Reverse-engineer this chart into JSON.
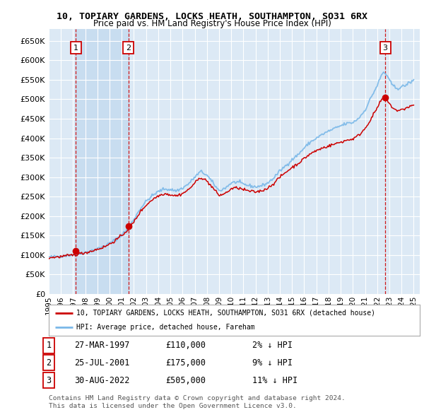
{
  "title": "10, TOPIARY GARDENS, LOCKS HEATH, SOUTHAMPTON, SO31 6RX",
  "subtitle": "Price paid vs. HM Land Registry's House Price Index (HPI)",
  "ylim": [
    0,
    680000
  ],
  "yticks": [
    0,
    50000,
    100000,
    150000,
    200000,
    250000,
    300000,
    350000,
    400000,
    450000,
    500000,
    550000,
    600000,
    650000
  ],
  "bg_color": "#dce9f5",
  "grid_color": "#ffffff",
  "hpi_color": "#7ab8e8",
  "price_color": "#cc0000",
  "sale_color": "#cc0000",
  "dashed_color": "#cc0000",
  "shade_color": "#c8ddf0",
  "legend_label_price": "10, TOPIARY GARDENS, LOCKS HEATH, SOUTHAMPTON, SO31 6RX (detached house)",
  "legend_label_hpi": "HPI: Average price, detached house, Fareham",
  "transactions": [
    {
      "id": 1,
      "date": "27-MAR-1997",
      "year": 1997.23,
      "price": 110000,
      "note": "2% ↓ HPI"
    },
    {
      "id": 2,
      "date": "25-JUL-2001",
      "year": 2001.56,
      "price": 175000,
      "note": "9% ↓ HPI"
    },
    {
      "id": 3,
      "date": "30-AUG-2022",
      "year": 2022.66,
      "price": 505000,
      "note": "11% ↓ HPI"
    }
  ],
  "footnote1": "Contains HM Land Registry data © Crown copyright and database right 2024.",
  "footnote2": "This data is licensed under the Open Government Licence v3.0.",
  "xmin": 1995.0,
  "xmax": 2025.5,
  "xticks": [
    1995,
    1996,
    1997,
    1998,
    1999,
    2000,
    2001,
    2002,
    2003,
    2004,
    2005,
    2006,
    2007,
    2008,
    2009,
    2010,
    2011,
    2012,
    2013,
    2014,
    2015,
    2016,
    2017,
    2018,
    2019,
    2020,
    2021,
    2022,
    2023,
    2024,
    2025
  ],
  "hpi_anchors": [
    [
      1995.0,
      95000
    ],
    [
      1995.5,
      96000
    ],
    [
      1996.0,
      97500
    ],
    [
      1996.5,
      99000
    ],
    [
      1997.0,
      101000
    ],
    [
      1997.5,
      104000
    ],
    [
      1998.0,
      107000
    ],
    [
      1998.5,
      111000
    ],
    [
      1999.0,
      116000
    ],
    [
      1999.5,
      122000
    ],
    [
      2000.0,
      130000
    ],
    [
      2000.5,
      140000
    ],
    [
      2001.0,
      152000
    ],
    [
      2001.5,
      168000
    ],
    [
      2002.0,
      192000
    ],
    [
      2002.5,
      218000
    ],
    [
      2003.0,
      238000
    ],
    [
      2003.5,
      252000
    ],
    [
      2004.0,
      263000
    ],
    [
      2004.5,
      270000
    ],
    [
      2005.0,
      268000
    ],
    [
      2005.5,
      265000
    ],
    [
      2006.0,
      272000
    ],
    [
      2006.5,
      283000
    ],
    [
      2007.0,
      300000
    ],
    [
      2007.5,
      315000
    ],
    [
      2008.0,
      305000
    ],
    [
      2008.5,
      285000
    ],
    [
      2009.0,
      265000
    ],
    [
      2009.5,
      272000
    ],
    [
      2010.0,
      285000
    ],
    [
      2010.5,
      288000
    ],
    [
      2011.0,
      282000
    ],
    [
      2011.5,
      278000
    ],
    [
      2012.0,
      275000
    ],
    [
      2012.5,
      278000
    ],
    [
      2013.0,
      285000
    ],
    [
      2013.5,
      298000
    ],
    [
      2014.0,
      316000
    ],
    [
      2014.5,
      330000
    ],
    [
      2015.0,
      345000
    ],
    [
      2015.5,
      358000
    ],
    [
      2016.0,
      375000
    ],
    [
      2016.5,
      390000
    ],
    [
      2017.0,
      400000
    ],
    [
      2017.5,
      410000
    ],
    [
      2018.0,
      418000
    ],
    [
      2018.5,
      425000
    ],
    [
      2019.0,
      432000
    ],
    [
      2019.5,
      438000
    ],
    [
      2020.0,
      440000
    ],
    [
      2020.5,
      452000
    ],
    [
      2021.0,
      472000
    ],
    [
      2021.5,
      505000
    ],
    [
      2022.0,
      535000
    ],
    [
      2022.3,
      558000
    ],
    [
      2022.5,
      570000
    ],
    [
      2022.8,
      562000
    ],
    [
      2023.0,
      548000
    ],
    [
      2023.3,
      535000
    ],
    [
      2023.5,
      530000
    ],
    [
      2023.8,
      528000
    ],
    [
      2024.0,
      532000
    ],
    [
      2024.3,
      535000
    ],
    [
      2024.5,
      540000
    ],
    [
      2024.8,
      545000
    ],
    [
      2025.0,
      548000
    ]
  ],
  "price_anchors": [
    [
      1995.0,
      93000
    ],
    [
      1995.5,
      94500
    ],
    [
      1996.0,
      96000
    ],
    [
      1996.5,
      98000
    ],
    [
      1997.0,
      100000
    ],
    [
      1997.5,
      103000
    ],
    [
      1998.0,
      106000
    ],
    [
      1998.5,
      110000
    ],
    [
      1999.0,
      115000
    ],
    [
      1999.5,
      120000
    ],
    [
      2000.0,
      128000
    ],
    [
      2000.5,
      138000
    ],
    [
      2001.0,
      150000
    ],
    [
      2001.5,
      165000
    ],
    [
      2002.0,
      185000
    ],
    [
      2002.5,
      210000
    ],
    [
      2003.0,
      228000
    ],
    [
      2003.5,
      242000
    ],
    [
      2004.0,
      252000
    ],
    [
      2004.5,
      258000
    ],
    [
      2005.0,
      255000
    ],
    [
      2005.5,
      252000
    ],
    [
      2006.0,
      258000
    ],
    [
      2006.5,
      268000
    ],
    [
      2007.0,
      285000
    ],
    [
      2007.5,
      300000
    ],
    [
      2008.0,
      290000
    ],
    [
      2008.5,
      272000
    ],
    [
      2009.0,
      253000
    ],
    [
      2009.5,
      258000
    ],
    [
      2010.0,
      270000
    ],
    [
      2010.5,
      273000
    ],
    [
      2011.0,
      268000
    ],
    [
      2011.5,
      264000
    ],
    [
      2012.0,
      262000
    ],
    [
      2012.5,
      265000
    ],
    [
      2013.0,
      272000
    ],
    [
      2013.5,
      284000
    ],
    [
      2014.0,
      300000
    ],
    [
      2014.5,
      313000
    ],
    [
      2015.0,
      325000
    ],
    [
      2015.5,
      335000
    ],
    [
      2016.0,
      348000
    ],
    [
      2016.5,
      360000
    ],
    [
      2017.0,
      368000
    ],
    [
      2017.5,
      375000
    ],
    [
      2018.0,
      380000
    ],
    [
      2018.5,
      385000
    ],
    [
      2019.0,
      390000
    ],
    [
      2019.5,
      395000
    ],
    [
      2020.0,
      398000
    ],
    [
      2020.5,
      408000
    ],
    [
      2021.0,
      425000
    ],
    [
      2021.5,
      450000
    ],
    [
      2022.0,
      478000
    ],
    [
      2022.3,
      495000
    ],
    [
      2022.5,
      505000
    ],
    [
      2022.8,
      498000
    ],
    [
      2023.0,
      488000
    ],
    [
      2023.3,
      478000
    ],
    [
      2023.5,
      473000
    ],
    [
      2023.8,
      470000
    ],
    [
      2024.0,
      473000
    ],
    [
      2024.3,
      476000
    ],
    [
      2024.5,
      480000
    ],
    [
      2024.8,
      483000
    ],
    [
      2025.0,
      485000
    ]
  ]
}
